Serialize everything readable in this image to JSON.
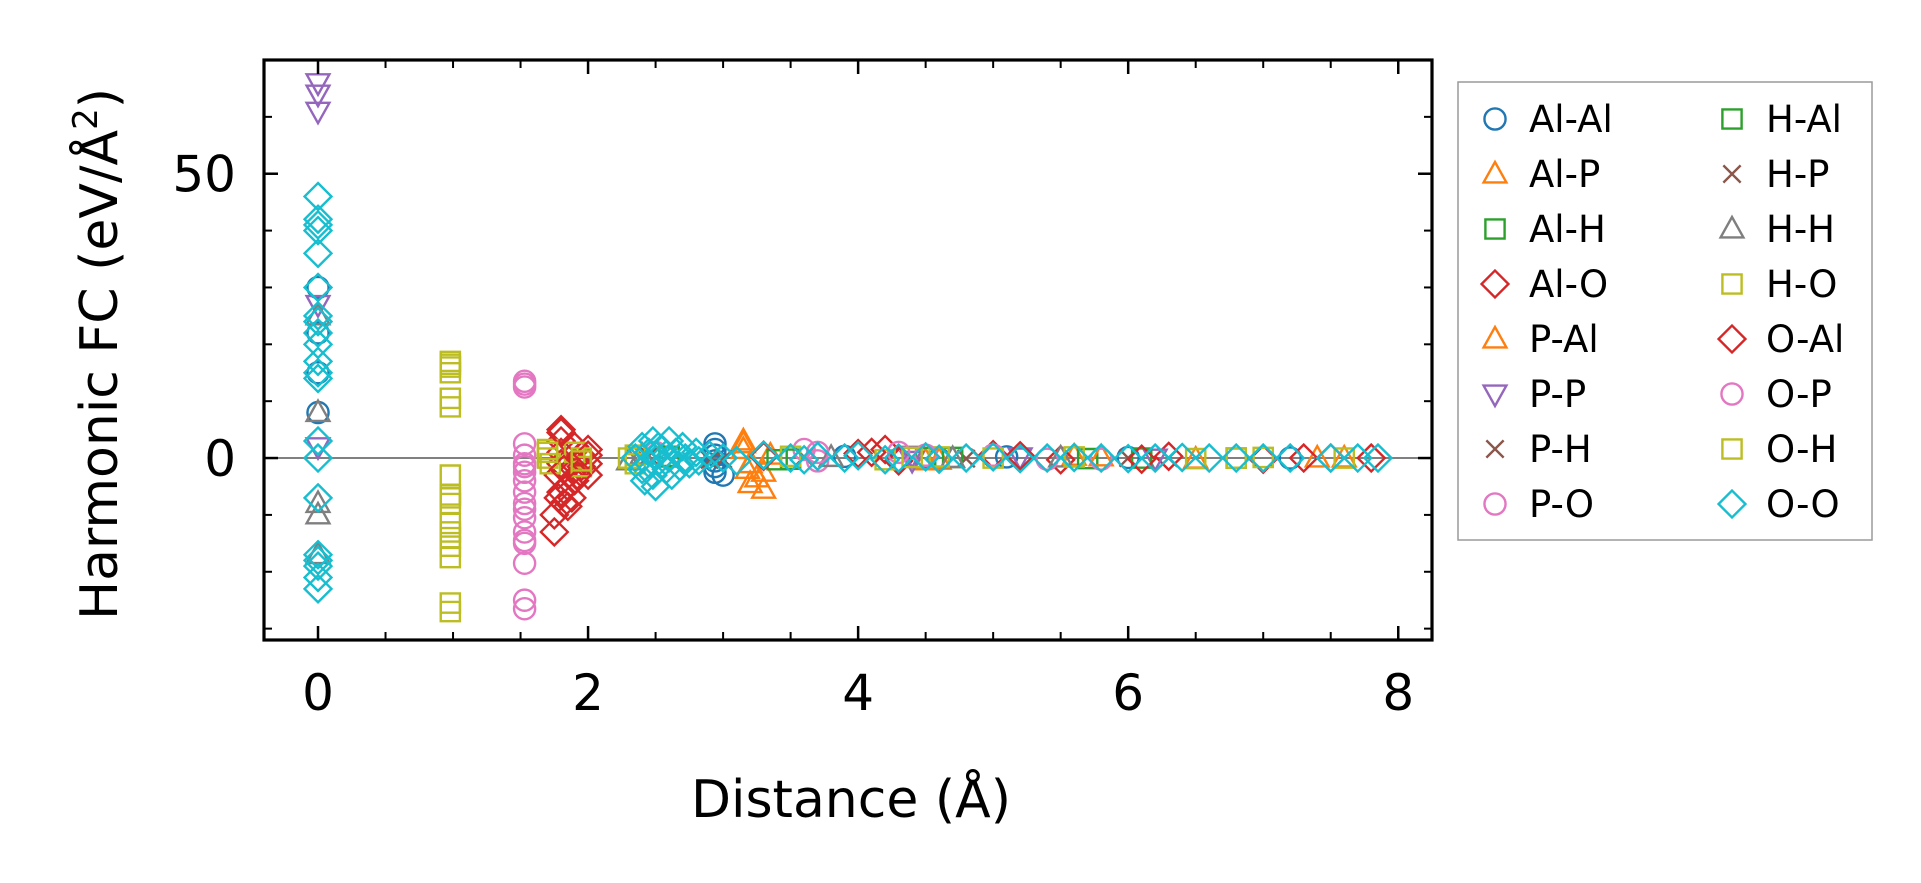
{
  "chart_data": {
    "type": "scatter",
    "title": "",
    "xlabel": "Distance (Å)",
    "ylabel": "Harmonic FC (eV/Å²)",
    "ylabel_parts": {
      "main": "Harmonic FC (eV/Å",
      "sup": "2",
      "close": ")"
    },
    "xlim": [
      -0.4,
      8.25
    ],
    "ylim": [
      -32,
      70
    ],
    "xticks": [
      0,
      2,
      4,
      6,
      8
    ],
    "xtick_labels": [
      "0",
      "2",
      "4",
      "6",
      "8"
    ],
    "yticks": [
      0,
      50
    ],
    "ytick_labels": [
      "0",
      "50"
    ],
    "grid": false,
    "zero_line": true,
    "legend_position": "outside-right",
    "series": [
      {
        "name": "Al-Al",
        "marker": "circle",
        "color": "#1f77b4",
        "points": [
          [
            0,
            30
          ],
          [
            0,
            22
          ],
          [
            0,
            15
          ],
          [
            0,
            8
          ],
          [
            2.94,
            2.5
          ],
          [
            2.94,
            1.5
          ],
          [
            2.94,
            0.5
          ],
          [
            2.94,
            -0.5
          ],
          [
            2.94,
            -1.5
          ],
          [
            2.94,
            -2.5
          ],
          [
            3.0,
            -3
          ],
          [
            3.9,
            0.3
          ],
          [
            4.6,
            -0.2
          ],
          [
            5.1,
            0.2
          ],
          [
            6.0,
            0.1
          ],
          [
            7.2,
            0.0
          ]
        ]
      },
      {
        "name": "Al-P",
        "marker": "triangle-up",
        "color": "#ff7f0e",
        "points": [
          [
            3.15,
            3
          ],
          [
            3.15,
            1.5
          ],
          [
            3.18,
            -2
          ],
          [
            3.2,
            -4.5
          ],
          [
            3.3,
            -5.5
          ],
          [
            3.3,
            -2.5
          ],
          [
            3.35,
            0.5
          ],
          [
            4.5,
            -0.5
          ],
          [
            5.6,
            0.3
          ],
          [
            6.5,
            -0.2
          ],
          [
            7.6,
            0.0
          ]
        ]
      },
      {
        "name": "Al-H",
        "marker": "square",
        "color": "#2ca02c",
        "points": [
          [
            2.6,
            0.2
          ],
          [
            3.4,
            -0.3
          ],
          [
            4.5,
            0.1
          ],
          [
            5.7,
            -0.1
          ],
          [
            6.8,
            0.0
          ]
        ]
      },
      {
        "name": "Al-O",
        "marker": "diamond",
        "color": "#d62728",
        "points": [
          [
            1.8,
            5
          ],
          [
            1.8,
            3
          ],
          [
            1.8,
            1
          ],
          [
            1.8,
            -1
          ],
          [
            1.78,
            -3
          ],
          [
            1.8,
            -6
          ],
          [
            1.82,
            -8
          ],
          [
            1.75,
            -10
          ],
          [
            1.75,
            -13
          ],
          [
            1.85,
            -5
          ],
          [
            1.9,
            -2
          ],
          [
            1.95,
            -1.5
          ],
          [
            1.9,
            -4
          ],
          [
            1.9,
            2
          ],
          [
            1.95,
            0.5
          ],
          [
            2.0,
            -1
          ],
          [
            2.0,
            1.5
          ],
          [
            2.0,
            -3
          ],
          [
            1.85,
            -8.5
          ],
          [
            1.88,
            -7
          ],
          [
            3.3,
            0.5
          ],
          [
            4.0,
            0.8
          ],
          [
            4.2,
            1.5
          ],
          [
            4.3,
            -0.5
          ],
          [
            5.0,
            0.6
          ],
          [
            5.5,
            -0.3
          ],
          [
            6.3,
            0.3
          ],
          [
            7.0,
            -0.2
          ],
          [
            7.5,
            0.0
          ],
          [
            7.8,
            0.0
          ]
        ]
      },
      {
        "name": "P-Al",
        "marker": "triangle-up",
        "color": "#ff7f0e",
        "points": [
          [
            3.15,
            2.5
          ],
          [
            3.2,
            -1
          ],
          [
            3.25,
            -3.5
          ],
          [
            4.6,
            -0.4
          ],
          [
            5.8,
            0.2
          ],
          [
            7.4,
            0.0
          ]
        ]
      },
      {
        "name": "P-P",
        "marker": "triangle-down",
        "color": "#9467bd",
        "points": [
          [
            0,
            66
          ],
          [
            0,
            64
          ],
          [
            0,
            61
          ],
          [
            0,
            27
          ],
          [
            0,
            2
          ],
          [
            4.4,
            0.5
          ],
          [
            4.4,
            -0.4
          ],
          [
            5.2,
            0.2
          ],
          [
            6.2,
            0.0
          ]
        ]
      },
      {
        "name": "P-H",
        "marker": "x",
        "color": "#8c564b",
        "points": [
          [
            2.4,
            0.5
          ],
          [
            2.9,
            -0.3
          ],
          [
            3.6,
            0.2
          ],
          [
            4.8,
            -0.1
          ],
          [
            6.0,
            0.0
          ]
        ]
      },
      {
        "name": "P-O",
        "marker": "circle",
        "color": "#e377c2",
        "points": [
          [
            1.53,
            13
          ],
          [
            1.53,
            13.5
          ],
          [
            1.53,
            2.5
          ],
          [
            1.53,
            0.5
          ],
          [
            1.53,
            -1
          ],
          [
            1.53,
            -2.5
          ],
          [
            1.53,
            -4
          ],
          [
            1.53,
            -6
          ],
          [
            1.53,
            -8
          ],
          [
            1.53,
            -10.5
          ],
          [
            1.53,
            -13
          ],
          [
            1.53,
            -14.5
          ],
          [
            1.53,
            -18.5
          ],
          [
            1.53,
            -25
          ],
          [
            1.53,
            -26.5
          ],
          [
            2.5,
            1
          ],
          [
            3.6,
            1.5
          ],
          [
            3.7,
            -0.5
          ],
          [
            4.3,
            1
          ],
          [
            5.0,
            0.5
          ],
          [
            5.8,
            -0.2
          ]
        ]
      },
      {
        "name": "H-Al",
        "marker": "square",
        "color": "#2ca02c",
        "points": [
          [
            2.6,
            0.3
          ],
          [
            3.5,
            -0.2
          ],
          [
            4.7,
            0.1
          ],
          [
            6.1,
            0.0
          ]
        ]
      },
      {
        "name": "H-P",
        "marker": "x",
        "color": "#8c564b",
        "points": [
          [
            2.45,
            0.4
          ],
          [
            3.0,
            -0.2
          ],
          [
            4.9,
            0.1
          ],
          [
            6.3,
            0.0
          ]
        ]
      },
      {
        "name": "H-H",
        "marker": "triangle-up",
        "color": "#7f7f7f",
        "points": [
          [
            0,
            25
          ],
          [
            0,
            8
          ],
          [
            0,
            -8
          ],
          [
            0,
            -10
          ],
          [
            0,
            -17
          ],
          [
            2.3,
            -0.5
          ],
          [
            2.4,
            0.5
          ],
          [
            3.8,
            0.1
          ],
          [
            4.7,
            -0.1
          ],
          [
            5.5,
            0.0
          ]
        ]
      },
      {
        "name": "H-O",
        "marker": "square",
        "color": "#bcbd22",
        "points": [
          [
            0.98,
            17
          ],
          [
            0.98,
            16
          ],
          [
            0.98,
            15
          ],
          [
            0.98,
            10.5
          ],
          [
            0.98,
            9
          ],
          [
            0.98,
            -3
          ],
          [
            0.98,
            -6.5
          ],
          [
            0.98,
            -8
          ],
          [
            0.98,
            -11.5
          ],
          [
            0.98,
            -13
          ],
          [
            0.98,
            -15.5
          ],
          [
            0.98,
            -17.5
          ],
          [
            0.98,
            -25.5
          ],
          [
            0.98,
            -27
          ],
          [
            1.7,
            1.5
          ],
          [
            1.7,
            0
          ],
          [
            1.72,
            -1
          ],
          [
            1.9,
            1
          ],
          [
            1.95,
            0
          ],
          [
            1.95,
            -1.5
          ],
          [
            2.3,
            0
          ],
          [
            2.35,
            -1
          ],
          [
            3.5,
            0.3
          ],
          [
            4.2,
            -0.3
          ],
          [
            4.6,
            0.2
          ],
          [
            5.0,
            0
          ],
          [
            5.6,
            0.2
          ],
          [
            6.5,
            -0.1
          ],
          [
            7.0,
            0.1
          ],
          [
            7.6,
            0
          ]
        ]
      },
      {
        "name": "O-Al",
        "marker": "diamond",
        "color": "#d62728",
        "points": [
          [
            1.8,
            4.5
          ],
          [
            1.82,
            -2
          ],
          [
            1.78,
            -7
          ],
          [
            1.92,
            -3
          ],
          [
            2.0,
            0.5
          ],
          [
            3.3,
            0.3
          ],
          [
            4.1,
            1
          ],
          [
            5.2,
            0.4
          ],
          [
            6.1,
            -0.2
          ],
          [
            7.3,
            0.0
          ]
        ]
      },
      {
        "name": "O-P",
        "marker": "circle",
        "color": "#e377c2",
        "points": [
          [
            1.53,
            12.5
          ],
          [
            1.53,
            -1.5
          ],
          [
            1.53,
            -9
          ],
          [
            1.53,
            -15
          ],
          [
            3.7,
            1
          ],
          [
            4.5,
            0.5
          ],
          [
            5.4,
            -0.2
          ]
        ]
      },
      {
        "name": "O-H",
        "marker": "square",
        "color": "#bcbd22",
        "points": [
          [
            0.98,
            16.5
          ],
          [
            0.98,
            -7
          ],
          [
            0.98,
            -14
          ],
          [
            1.7,
            1
          ],
          [
            1.95,
            -0.5
          ],
          [
            2.35,
            0.5
          ],
          [
            4.4,
            0.1
          ],
          [
            6.8,
            0.0
          ]
        ]
      },
      {
        "name": "O-O",
        "marker": "diamond",
        "color": "#17becf",
        "points": [
          [
            0,
            46
          ],
          [
            0,
            42
          ],
          [
            0,
            41
          ],
          [
            0,
            40
          ],
          [
            0,
            36
          ],
          [
            0,
            30
          ],
          [
            0,
            25
          ],
          [
            0,
            24
          ],
          [
            0,
            22
          ],
          [
            0,
            20
          ],
          [
            0,
            17
          ],
          [
            0,
            15
          ],
          [
            0,
            14
          ],
          [
            0,
            3
          ],
          [
            0,
            0
          ],
          [
            0,
            -7
          ],
          [
            0,
            -17
          ],
          [
            0,
            -18
          ],
          [
            0,
            -19
          ],
          [
            0,
            -21
          ],
          [
            0,
            -23
          ],
          [
            2.35,
            0
          ],
          [
            2.4,
            2
          ],
          [
            2.4,
            -2
          ],
          [
            2.42,
            -4
          ],
          [
            2.45,
            1
          ],
          [
            2.45,
            -1
          ],
          [
            2.48,
            3
          ],
          [
            2.48,
            -3
          ],
          [
            2.5,
            0.5
          ],
          [
            2.5,
            -5
          ],
          [
            2.52,
            2
          ],
          [
            2.55,
            -1
          ],
          [
            2.55,
            1.5
          ],
          [
            2.58,
            -2
          ],
          [
            2.6,
            0
          ],
          [
            2.6,
            3
          ],
          [
            2.62,
            -3
          ],
          [
            2.65,
            1
          ],
          [
            2.68,
            -1.5
          ],
          [
            2.7,
            2
          ],
          [
            2.72,
            0
          ],
          [
            2.75,
            -1
          ],
          [
            2.8,
            1
          ],
          [
            2.82,
            -0.5
          ],
          [
            2.9,
            0.5
          ],
          [
            3.0,
            0
          ],
          [
            3.1,
            -0.5
          ],
          [
            3.3,
            0.5
          ],
          [
            3.5,
            0
          ],
          [
            3.6,
            -0.3
          ],
          [
            3.7,
            0.3
          ],
          [
            3.9,
            0
          ],
          [
            4.0,
            0.4
          ],
          [
            4.2,
            -0.3
          ],
          [
            4.3,
            0
          ],
          [
            4.5,
            0.2
          ],
          [
            4.6,
            -0.2
          ],
          [
            4.8,
            0
          ],
          [
            5.0,
            0.2
          ],
          [
            5.2,
            -0.1
          ],
          [
            5.4,
            0
          ],
          [
            5.6,
            0.1
          ],
          [
            5.8,
            0
          ],
          [
            6.0,
            -0.1
          ],
          [
            6.2,
            0
          ],
          [
            6.4,
            0.1
          ],
          [
            6.6,
            0
          ],
          [
            6.8,
            0
          ],
          [
            7.0,
            0
          ],
          [
            7.2,
            0
          ],
          [
            7.5,
            0
          ],
          [
            7.7,
            0
          ],
          [
            7.85,
            0
          ]
        ]
      }
    ]
  }
}
